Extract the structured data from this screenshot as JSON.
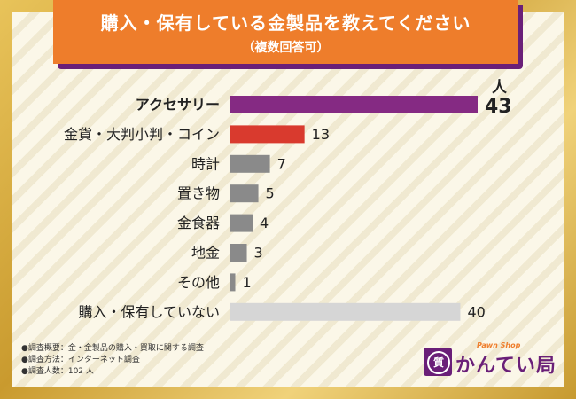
{
  "title": "購入・保有している金製品を教えてください",
  "subtitle": "（複数回答可）",
  "unit_label": "人",
  "chart_data": {
    "type": "bar",
    "orientation": "horizontal",
    "categories": [
      "アクセサリー",
      "金貨・大判小判・コイン",
      "時計",
      "置き物",
      "金食器",
      "地金",
      "その他",
      "購入・保有していない"
    ],
    "values": [
      43,
      13,
      7,
      5,
      4,
      3,
      1,
      40
    ],
    "colors": [
      "#852a83",
      "#d93a2e",
      "#8a8a8a",
      "#8a8a8a",
      "#8a8a8a",
      "#8a8a8a",
      "#8a8a8a",
      "#d6d6d6"
    ],
    "highlight_index": 0,
    "grid": false,
    "legend": "none"
  },
  "notes": [
    "●調査概要：金・金製品の購入・買取に関する調査",
    "●調査方法：インターネット調査",
    "●調査人数：102 人"
  ],
  "logo": {
    "tagline": "Pawn Shop",
    "name": "かんてい局",
    "mark": "質"
  }
}
